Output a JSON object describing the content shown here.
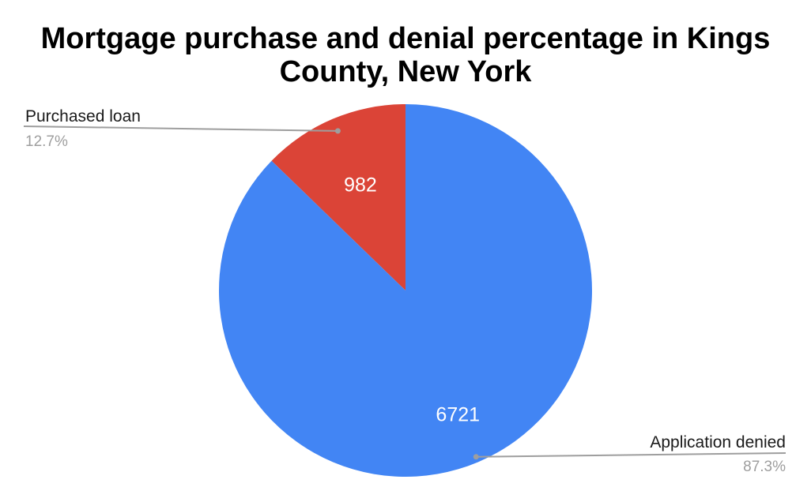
{
  "chart_data": {
    "type": "pie",
    "title": "Mortgage purchase and denial percentage in Kings County, New York",
    "slices": [
      {
        "label": "Purchased loan",
        "value": 982,
        "value_label": "982",
        "percent_label": "12.7%",
        "color": "#db4437"
      },
      {
        "label": "Application denied",
        "value": 6721,
        "value_label": "6721",
        "percent_label": "87.3%",
        "color": "#4285f4"
      }
    ],
    "leader_line_color": "#9e9e9e"
  }
}
